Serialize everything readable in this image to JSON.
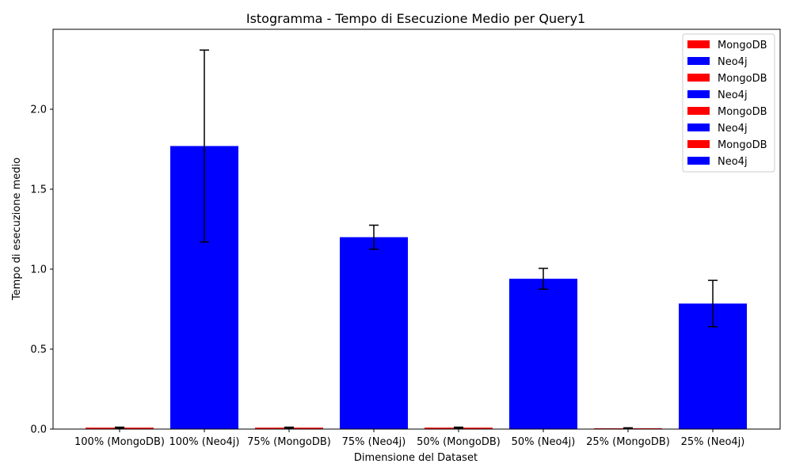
{
  "chart_data": {
    "type": "bar",
    "title": "Istogramma - Tempo di Esecuzione Medio per Query1",
    "xlabel": "Dimensione del Dataset",
    "ylabel": "Tempo di esecuzione medio",
    "ylim": [
      0,
      2.5
    ],
    "yticks": [
      0.0,
      0.5,
      1.0,
      1.5,
      2.0
    ],
    "ytick_labels": [
      "0.0",
      "0.5",
      "1.0",
      "1.5",
      "2.0"
    ],
    "grid": false,
    "legend_position": "top-right",
    "categories": [
      "100% (MongoDB)",
      "100% (Neo4j)",
      "75% (MongoDB)",
      "75% (Neo4j)",
      "50% (MongoDB)",
      "50% (Neo4j)",
      "25% (MongoDB)",
      "25% (Neo4j)"
    ],
    "values": [
      0.009,
      1.77,
      0.009,
      1.2,
      0.009,
      0.94,
      0.005,
      0.785
    ],
    "errors": [
      0.003,
      0.6,
      0.003,
      0.075,
      0.003,
      0.065,
      0.003,
      0.145
    ],
    "bar_colors": [
      "#ff0000",
      "#0000ff",
      "#ff0000",
      "#0000ff",
      "#ff0000",
      "#0000ff",
      "#ff0000",
      "#0000ff"
    ],
    "legend": [
      {
        "label": "MongoDB",
        "color": "#ff0000"
      },
      {
        "label": "Neo4j",
        "color": "#0000ff"
      },
      {
        "label": "MongoDB",
        "color": "#ff0000"
      },
      {
        "label": "Neo4j",
        "color": "#0000ff"
      },
      {
        "label": "MongoDB",
        "color": "#ff0000"
      },
      {
        "label": "Neo4j",
        "color": "#0000ff"
      },
      {
        "label": "MongoDB",
        "color": "#ff0000"
      },
      {
        "label": "Neo4j",
        "color": "#0000ff"
      }
    ]
  }
}
